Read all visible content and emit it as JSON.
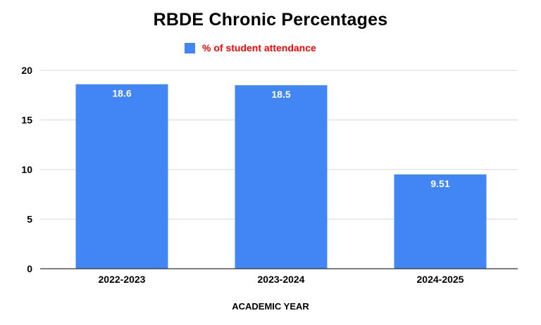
{
  "chart_data": {
    "type": "bar",
    "title": "RBDE Chronic Percentages",
    "xlabel": "ACADEMIC YEAR",
    "ylabel": "",
    "categories": [
      "2022-2023",
      "2023-2024",
      "2024-2025"
    ],
    "series": [
      {
        "name": "% of student attendance",
        "values": [
          18.6,
          18.5,
          9.51
        ]
      }
    ],
    "data_labels": [
      "18.6",
      "18.5",
      "9.51"
    ],
    "ylim": [
      0,
      20
    ],
    "yticks": [
      0,
      5,
      10,
      15,
      20
    ],
    "grid": true,
    "legend_position": "top",
    "colors": {
      "bar": "#4285f4",
      "legend_text": "#ff0000",
      "grid": "#d9d9d9",
      "axis": "#333333",
      "data_label": "#ffffff"
    }
  }
}
